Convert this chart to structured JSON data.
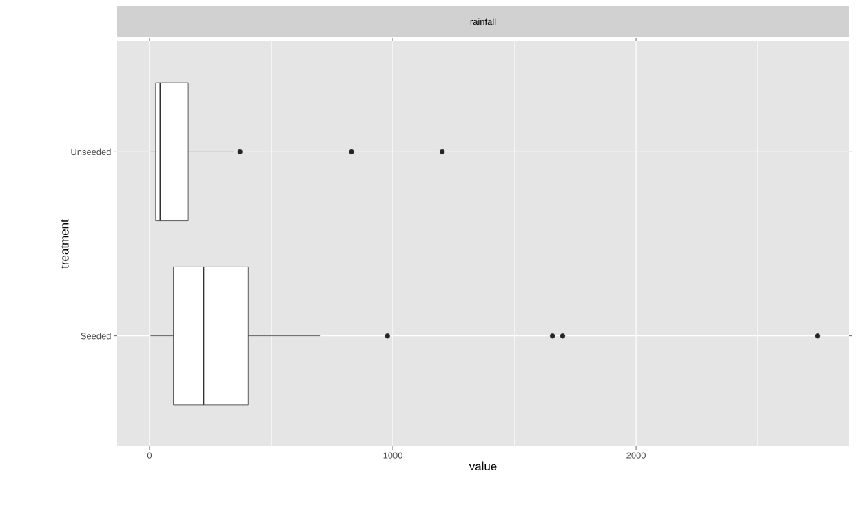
{
  "chart_data": {
    "type": "box",
    "title": "rainfall",
    "xlabel": "value",
    "ylabel": "treatment",
    "orientation": "horizontal",
    "categories": [
      "Unseeded",
      "Seeded"
    ],
    "boxes": [
      {
        "low": 1,
        "q1": 25,
        "median": 44,
        "q3": 159,
        "high": 346,
        "outliers": [
          372,
          830,
          1203
        ]
      },
      {
        "low": 4,
        "q1": 98,
        "median": 222,
        "q3": 406,
        "high": 703,
        "outliers": [
          978,
          1656,
          1698,
          2746
        ]
      }
    ],
    "xlim": [
      -133,
      2875
    ],
    "xticks": [
      0,
      1000,
      2000
    ],
    "grid": true
  }
}
